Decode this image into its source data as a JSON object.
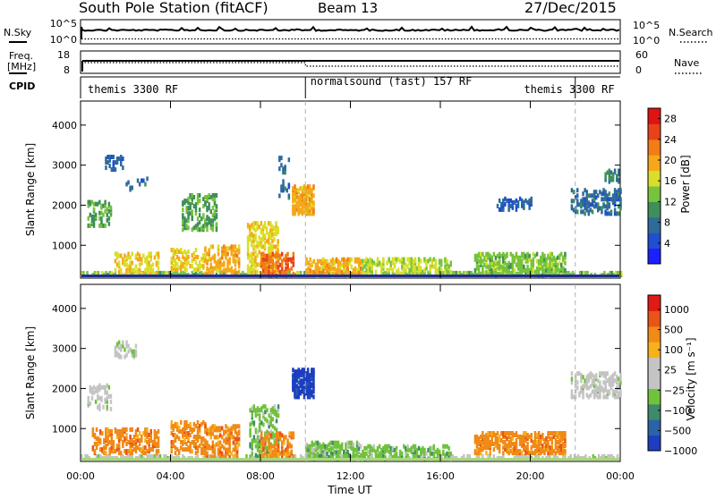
{
  "header": {
    "station": "South Pole Station (fitACF)",
    "beam": "Beam 13",
    "date": "27/Dec/2015"
  },
  "top_panels": {
    "nsky_label": "N.Sky",
    "nsky_ticks": [
      "10^5",
      "10^0"
    ],
    "nsearch_label": "N.Search",
    "freq_label_1": "Freq.",
    "freq_label_2": "[MHz]",
    "freq_ticks": [
      "18",
      "8"
    ],
    "nave_label": "Nave",
    "nave_ticks": [
      "60",
      "0"
    ],
    "cpid_label": "CPID",
    "cpid_segments": [
      {
        "text": "themis 3300 RF",
        "start": 0,
        "end": 10
      },
      {
        "text": "normalsound (fast) 157 RF",
        "start": 10,
        "end": 22
      },
      {
        "text": "themis 3300 RF",
        "start": 22,
        "end": 24
      }
    ],
    "cpid_labels_hours": [
      0.2,
      10.1,
      19.6
    ]
  },
  "colors": {
    "power": [
      "#1a20ff",
      "#1f4fd0",
      "#2f6b9a",
      "#3f8f5a",
      "#77c43c",
      "#d8df2a",
      "#f6a81a",
      "#f07d16",
      "#e8421b",
      "#e01313"
    ],
    "velocity": [
      "#1d3ec0",
      "#2a63a8",
      "#3f8a6a",
      "#70c23d",
      "#c4c4c4",
      "#c4c4c4",
      "#f7b11d",
      "#f08a18",
      "#ea5418",
      "#e11a15"
    ]
  },
  "chart_data": [
    {
      "type": "heatmap",
      "name": "power",
      "xlabel": "",
      "ylabel": "Slant Range [km]",
      "xlim": [
        0,
        24
      ],
      "ylim": [
        180,
        4600
      ],
      "yticks": [
        "1000",
        "2000",
        "3000",
        "4000"
      ],
      "colorbar": {
        "label": "Power [dB]",
        "ticks": [
          "4",
          "8",
          "12",
          "16",
          "20",
          "24",
          "28"
        ],
        "range": [
          0,
          30
        ]
      },
      "regions": [
        {
          "t": [
            0.0,
            24.0
          ],
          "r": [
            180,
            330
          ],
          "v": 12,
          "d": 0.55
        },
        {
          "t": [
            0.3,
            1.3
          ],
          "r": [
            1500,
            2100
          ],
          "v": 10,
          "d": 0.3
        },
        {
          "t": [
            1.0,
            1.9
          ],
          "r": [
            2900,
            3250
          ],
          "v": 5,
          "d": 0.35
        },
        {
          "t": [
            1.5,
            3.5
          ],
          "r": [
            300,
            800
          ],
          "v": 16,
          "d": 0.35
        },
        {
          "t": [
            2.0,
            3.0
          ],
          "r": [
            2400,
            2700
          ],
          "v": 6,
          "d": 0.2
        },
        {
          "t": [
            4.0,
            5.5
          ],
          "r": [
            400,
            900
          ],
          "v": 16,
          "d": 0.3
        },
        {
          "t": [
            4.5,
            6.0
          ],
          "r": [
            1400,
            2300
          ],
          "v": 10,
          "d": 0.3
        },
        {
          "t": [
            5.5,
            7.0
          ],
          "r": [
            300,
            1000
          ],
          "v": 18,
          "d": 0.35
        },
        {
          "t": [
            7.4,
            8.8
          ],
          "r": [
            300,
            1600
          ],
          "v": 16,
          "d": 0.4
        },
        {
          "t": [
            8.0,
            9.5
          ],
          "r": [
            250,
            800
          ],
          "v": 22,
          "d": 0.45
        },
        {
          "t": [
            9.4,
            10.4
          ],
          "r": [
            1800,
            2500
          ],
          "v": 18,
          "d": 0.6
        },
        {
          "t": [
            8.8,
            9.3
          ],
          "r": [
            2200,
            3200
          ],
          "v": 6,
          "d": 0.2
        },
        {
          "t": [
            10.0,
            12.5
          ],
          "r": [
            250,
            700
          ],
          "v": 18,
          "d": 0.5
        },
        {
          "t": [
            12.5,
            16.5
          ],
          "r": [
            300,
            700
          ],
          "v": 14,
          "d": 0.35
        },
        {
          "t": [
            17.5,
            21.5
          ],
          "r": [
            250,
            800
          ],
          "v": 12,
          "d": 0.5
        },
        {
          "t": [
            18.5,
            20.0
          ],
          "r": [
            1900,
            2200
          ],
          "v": 5,
          "d": 0.3
        },
        {
          "t": [
            21.8,
            24.0
          ],
          "r": [
            1800,
            2400
          ],
          "v": 6,
          "d": 0.35
        },
        {
          "t": [
            23.3,
            24.0
          ],
          "r": [
            2600,
            2900
          ],
          "v": 8,
          "d": 0.3
        }
      ]
    },
    {
      "type": "heatmap",
      "name": "velocity",
      "xlabel": "Time UT",
      "ylabel": "Slant Range [km]",
      "xlim": [
        0,
        24
      ],
      "xticks": [
        "00:00",
        "04:00",
        "08:00",
        "12:00",
        "16:00",
        "20:00",
        "00:00"
      ],
      "ylim": [
        180,
        4600
      ],
      "yticks": [
        "1000",
        "2000",
        "3000",
        "4000"
      ],
      "colorbar": {
        "label": "Velocity [m s⁻¹]",
        "ticks": [
          "1000",
          "500",
          "100",
          "25",
          "−25",
          "−100",
          "−500",
          "−1000"
        ]
      },
      "regions": [
        {
          "t": [
            0.0,
            24.0
          ],
          "r": [
            180,
            330
          ],
          "v": 4,
          "d": 0.45
        },
        {
          "t": [
            0.3,
            1.3
          ],
          "r": [
            1500,
            2100
          ],
          "v": 4,
          "d": 0.3
        },
        {
          "t": [
            0.5,
            3.5
          ],
          "r": [
            400,
            1000
          ],
          "v": 7,
          "d": 0.35
        },
        {
          "t": [
            1.5,
            2.5
          ],
          "r": [
            2800,
            3200
          ],
          "v": 4,
          "d": 0.25
        },
        {
          "t": [
            4.0,
            5.5
          ],
          "r": [
            400,
            1200
          ],
          "v": 7,
          "d": 0.35
        },
        {
          "t": [
            5.5,
            7.0
          ],
          "r": [
            300,
            1100
          ],
          "v": 7,
          "d": 0.4
        },
        {
          "t": [
            7.5,
            8.8
          ],
          "r": [
            300,
            1600
          ],
          "v": 3,
          "d": 0.35
        },
        {
          "t": [
            8.0,
            9.5
          ],
          "r": [
            300,
            900
          ],
          "v": 7,
          "d": 0.4
        },
        {
          "t": [
            9.4,
            10.4
          ],
          "r": [
            1800,
            2500
          ],
          "v": 0,
          "d": 0.65
        },
        {
          "t": [
            10.0,
            12.5
          ],
          "r": [
            250,
            700
          ],
          "v": 3,
          "d": 0.5
        },
        {
          "t": [
            12.5,
            16.5
          ],
          "r": [
            250,
            600
          ],
          "v": 3,
          "d": 0.35
        },
        {
          "t": [
            17.5,
            21.5
          ],
          "r": [
            400,
            900
          ],
          "v": 7,
          "d": 0.5
        },
        {
          "t": [
            21.8,
            24.0
          ],
          "r": [
            1800,
            2400
          ],
          "v": 4,
          "d": 0.35
        }
      ]
    }
  ]
}
